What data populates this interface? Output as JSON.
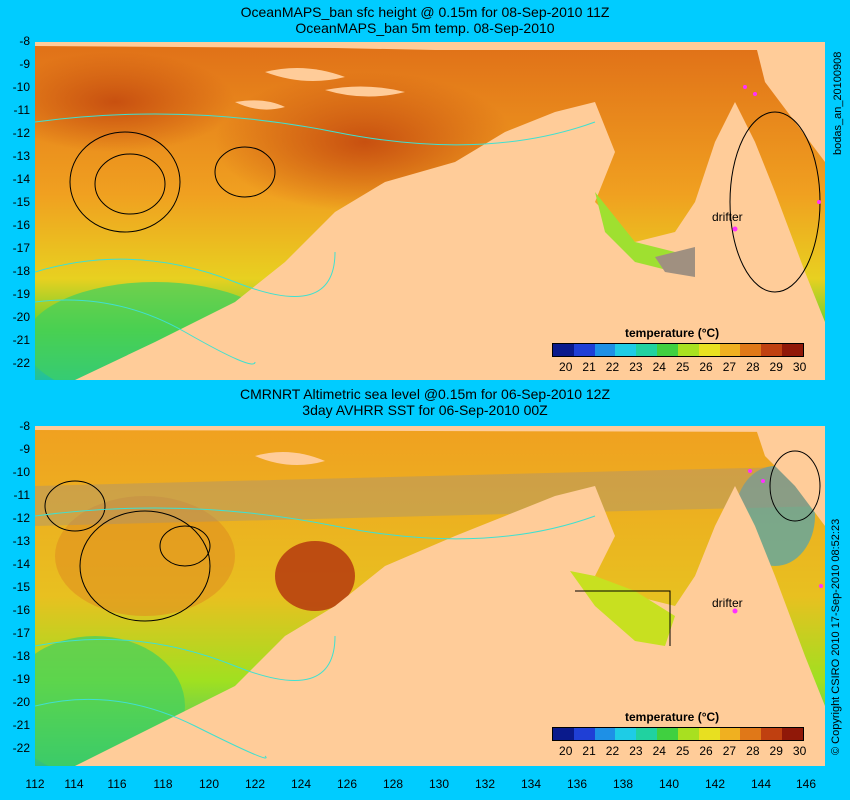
{
  "top_panel": {
    "title_line1": "OceanMAPS_ban sfc height @ 0.15m for 08-Sep-2010 11Z",
    "title_line2": "OceanMAPS_ban 5m temp. 08-Sep-2010",
    "side_label": "bodas_an_20100908",
    "drifter_label": "drifter"
  },
  "bottom_panel": {
    "title_line1": "CMRNRT Altimetric sea level  @0.15m  for 06-Sep-2010 12Z",
    "title_line2": "3day AVHRR SST for 06-Sep-2010 00Z",
    "side_label": "© Copyright CSIRO 2010  17-Sep-2010 08:52:23",
    "drifter_label": "drifter"
  },
  "legend": {
    "title": "temperature (°C)",
    "ticks": [
      "20",
      "21",
      "22",
      "23",
      "24",
      "25",
      "26",
      "27",
      "28",
      "29",
      "30"
    ],
    "colors": [
      "#0a1a8c",
      "#1f3fd6",
      "#1e90e6",
      "#1ecce6",
      "#20d2a0",
      "#40d040",
      "#a8e020",
      "#e8e020",
      "#f0b020",
      "#e07818",
      "#c04010",
      "#901808"
    ]
  },
  "axes": {
    "latitudes": [
      "-8",
      "-9",
      "-10",
      "-11",
      "-12",
      "-13",
      "-14",
      "-15",
      "-16",
      "-17",
      "-18",
      "-19",
      "-20",
      "-21",
      "-22"
    ],
    "longitudes": [
      "112",
      "114",
      "116",
      "118",
      "120",
      "122",
      "124",
      "126",
      "128",
      "130",
      "132",
      "134",
      "136",
      "138",
      "140",
      "142",
      "144",
      "146"
    ]
  },
  "colors": {
    "background": "#00ccff",
    "land": "#ffcc99",
    "shelf": "#b0a090",
    "contour": "#40e0d0"
  }
}
